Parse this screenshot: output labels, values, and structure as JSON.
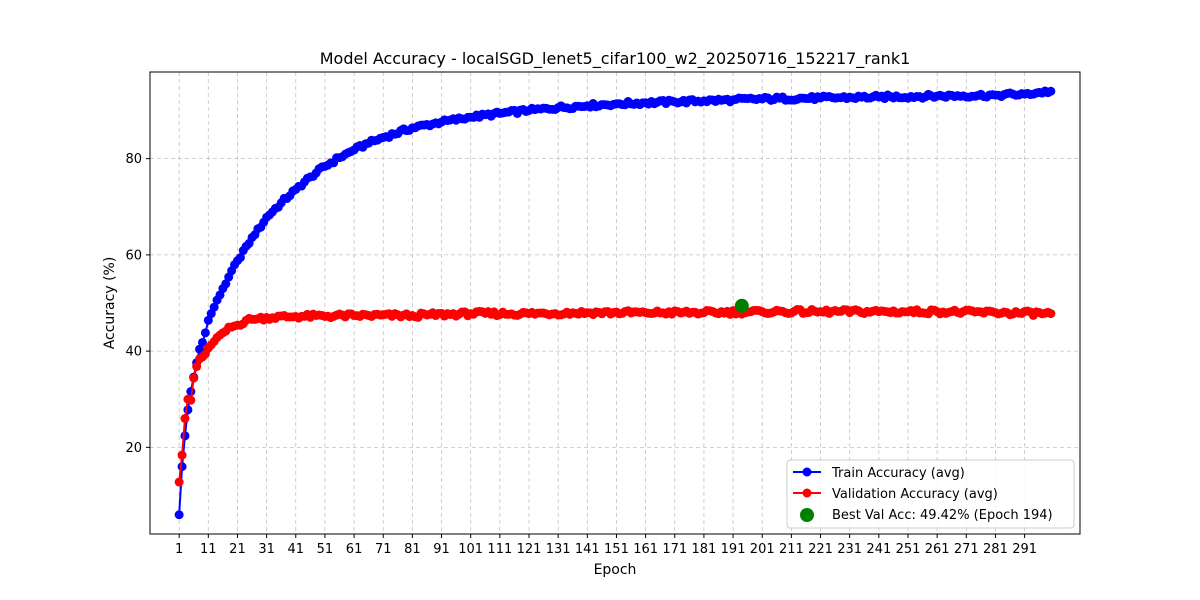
{
  "chart_data": {
    "type": "line",
    "title": "Model Accuracy - localSGD_lenet5_cifar100_w2_20250716_152217_rank1",
    "xlabel": "Epoch",
    "ylabel": "Accuracy (%)",
    "xlim": [
      -9,
      310
    ],
    "ylim": [
      2,
      98
    ],
    "x_ticks": [
      1,
      11,
      21,
      31,
      41,
      51,
      61,
      71,
      81,
      91,
      101,
      111,
      121,
      131,
      141,
      151,
      161,
      171,
      181,
      191,
      201,
      211,
      221,
      231,
      241,
      251,
      261,
      271,
      281,
      291
    ],
    "y_ticks": [
      20,
      40,
      60,
      80
    ],
    "grid": true,
    "legend_position": "lower-right",
    "x_range": [
      1,
      300
    ],
    "series": [
      {
        "name": "Train Accuracy (avg)",
        "color": "#0000ff",
        "marker": "circle",
        "anchors": [
          [
            1,
            6.0
          ],
          [
            2,
            16.0
          ],
          [
            3,
            22.4
          ],
          [
            4,
            27.8
          ],
          [
            5,
            31.6
          ],
          [
            6,
            34.6
          ],
          [
            7,
            37.6
          ],
          [
            8,
            40.4
          ],
          [
            9,
            41.8
          ],
          [
            10,
            43.8
          ],
          [
            11,
            46.4
          ],
          [
            12,
            47.8
          ],
          [
            14,
            50.6
          ],
          [
            16,
            53.0
          ],
          [
            18,
            55.4
          ],
          [
            21,
            58.8
          ],
          [
            24,
            61.8
          ],
          [
            27,
            64.2
          ],
          [
            31,
            67.8
          ],
          [
            36,
            70.8
          ],
          [
            41,
            73.6
          ],
          [
            46,
            76.2
          ],
          [
            51,
            78.4
          ],
          [
            56,
            80.2
          ],
          [
            61,
            81.8
          ],
          [
            66,
            83.2
          ],
          [
            71,
            84.4
          ],
          [
            81,
            86.4
          ],
          [
            91,
            87.6
          ],
          [
            101,
            88.6
          ],
          [
            111,
            89.4
          ],
          [
            121,
            90.0
          ],
          [
            131,
            90.6
          ],
          [
            141,
            91.0
          ],
          [
            151,
            91.4
          ],
          [
            161,
            91.6
          ],
          [
            171,
            91.8
          ],
          [
            181,
            92.0
          ],
          [
            191,
            92.2
          ],
          [
            201,
            92.4
          ],
          [
            221,
            92.6
          ],
          [
            241,
            92.8
          ],
          [
            261,
            93.0
          ],
          [
            281,
            93.2
          ],
          [
            291,
            93.4
          ],
          [
            300,
            94.0
          ]
        ],
        "noise": 0.4
      },
      {
        "name": "Validation Accuracy (avg)",
        "color": "#ff0000",
        "marker": "circle",
        "anchors": [
          [
            1,
            12.8
          ],
          [
            2,
            18.4
          ],
          [
            3,
            26.0
          ],
          [
            4,
            30.0
          ],
          [
            5,
            29.8
          ],
          [
            6,
            34.4
          ],
          [
            7,
            36.8
          ],
          [
            8,
            38.4
          ],
          [
            9,
            38.8
          ],
          [
            10,
            39.4
          ],
          [
            11,
            40.6
          ],
          [
            13,
            42.0
          ],
          [
            16,
            43.8
          ],
          [
            19,
            45.0
          ],
          [
            21,
            45.4
          ],
          [
            24,
            46.4
          ],
          [
            27,
            46.6
          ],
          [
            31,
            47.0
          ],
          [
            41,
            47.2
          ],
          [
            61,
            47.4
          ],
          [
            81,
            47.4
          ],
          [
            101,
            47.8
          ],
          [
            121,
            47.8
          ],
          [
            141,
            48.0
          ],
          [
            161,
            48.0
          ],
          [
            181,
            48.0
          ],
          [
            201,
            48.2
          ],
          [
            221,
            48.2
          ],
          [
            241,
            48.2
          ],
          [
            261,
            48.2
          ],
          [
            281,
            48.0
          ],
          [
            300,
            47.8
          ]
        ],
        "noise": 0.45
      }
    ],
    "best_point": {
      "name": "Best Val Acc: 49.42% (Epoch 194)",
      "epoch": 194,
      "value": 49.42,
      "color": "#008000"
    }
  }
}
